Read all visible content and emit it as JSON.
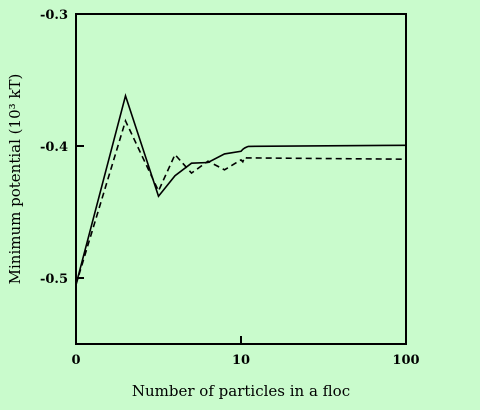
{
  "chart_data": {
    "type": "line",
    "title": "",
    "xlabel": "Number of particles in a floc",
    "ylabel": "Minimum potential (10³ kT)",
    "x_ticks": [
      "0",
      "10",
      "100"
    ],
    "y_ticks": [
      "-0.3",
      "-0.4",
      "-0.5"
    ],
    "ylim": [
      -0.55,
      -0.3
    ],
    "grid": false,
    "legend": "none",
    "series": [
      {
        "style": "solid",
        "color": "#000000",
        "points": [
          [
            0,
            -0.505
          ],
          [
            3,
            -0.362
          ],
          [
            5,
            -0.438
          ],
          [
            6,
            -0.4225
          ],
          [
            7,
            -0.413
          ],
          [
            8,
            -0.4125
          ],
          [
            9,
            -0.406
          ],
          [
            10,
            -0.404
          ],
          [
            11,
            -0.4025
          ],
          [
            12,
            -0.4015
          ],
          [
            13,
            -0.4008
          ],
          [
            14,
            -0.4003
          ],
          [
            100,
            -0.3995
          ]
        ]
      },
      {
        "style": "dashed",
        "color": "#000000",
        "points": [
          [
            0,
            -0.505
          ],
          [
            3,
            -0.381
          ],
          [
            5,
            -0.434
          ],
          [
            6,
            -0.4065
          ],
          [
            7,
            -0.4205
          ],
          [
            8,
            -0.4115
          ],
          [
            9,
            -0.418
          ],
          [
            10,
            -0.4105
          ],
          [
            11,
            -0.412
          ],
          [
            12,
            -0.4085
          ],
          [
            13,
            -0.409
          ],
          [
            14,
            -0.409
          ],
          [
            100,
            -0.41
          ]
        ]
      }
    ]
  }
}
